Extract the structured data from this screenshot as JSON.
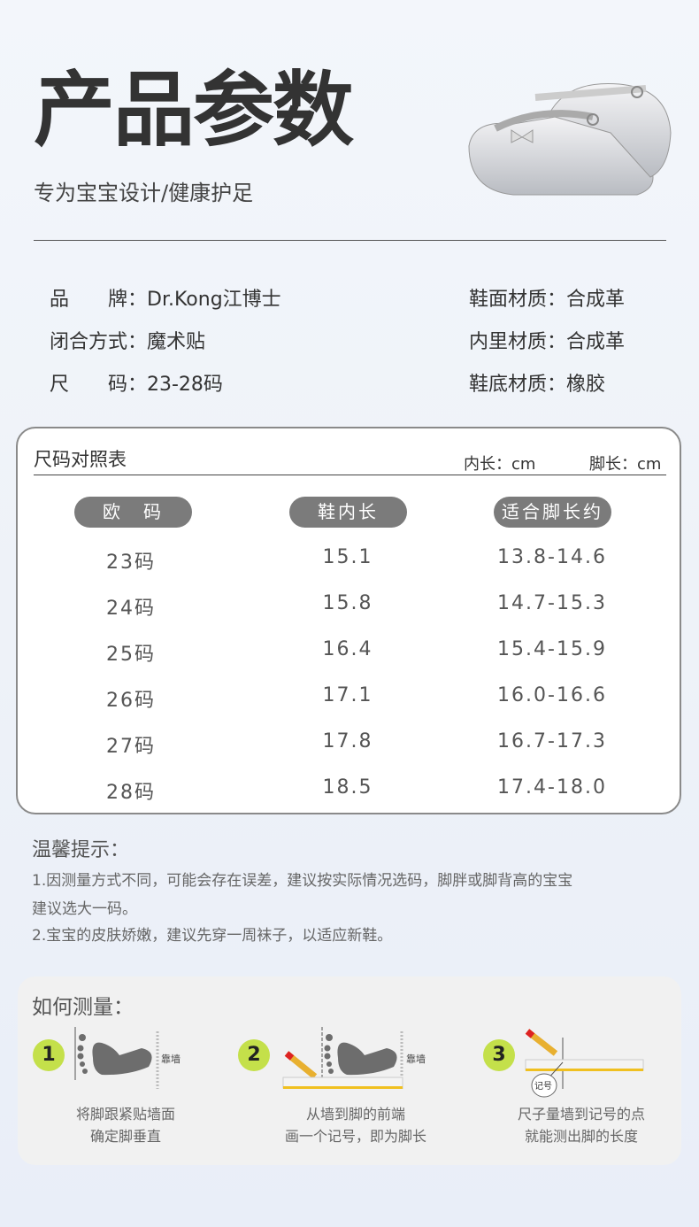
{
  "header": {
    "title": "产品参数",
    "subtitle": "专为宝宝设计/健康护足"
  },
  "params": {
    "brand": "品　　牌：Dr.Kong江博士",
    "closure": "闭合方式：魔术贴",
    "size": "尺　　码：23-28码",
    "upper": "鞋面材质：合成革",
    "lining": "内里材质：合成革",
    "sole": "鞋底材质：橡胶"
  },
  "size_table": {
    "title": "尺码对照表",
    "unit_inner": "内长：cm",
    "unit_foot": "脚长：cm",
    "headers": [
      "欧　码",
      "鞋内长",
      "适合脚长约"
    ],
    "rows": [
      [
        "23码",
        "15.1",
        "13.8-14.6"
      ],
      [
        "24码",
        "15.8",
        "14.7-15.3"
      ],
      [
        "25码",
        "16.4",
        "15.4-15.9"
      ],
      [
        "26码",
        "17.1",
        "16.0-16.6"
      ],
      [
        "27码",
        "17.8",
        "16.7-17.3"
      ],
      [
        "28码",
        "18.5",
        "17.4-18.0"
      ]
    ]
  },
  "tips": {
    "title": "温馨提示：",
    "lines": [
      "1.因测量方式不同，可能会存在误差，建议按实际情况选码，脚胖或脚背高的宝宝",
      "建议选大一码。",
      "2.宝宝的皮肤娇嫩，建议先穿一周袜子，以适应新鞋。"
    ]
  },
  "measure": {
    "title": "如何测量：",
    "wall_label": "靠墙",
    "mark_label": "记号",
    "steps": [
      {
        "num": "1",
        "line1": "将脚跟紧贴墙面",
        "line2": "确定脚垂直"
      },
      {
        "num": "2",
        "line1": "从墙到脚的前端",
        "line2": "画一个记号，即为脚长"
      },
      {
        "num": "3",
        "line1": "尺子量墙到记号的点",
        "line2": "就能测出脚的长度"
      }
    ]
  },
  "colors": {
    "step_badge": "#c4e04a",
    "pill": "#7b7b7b"
  }
}
